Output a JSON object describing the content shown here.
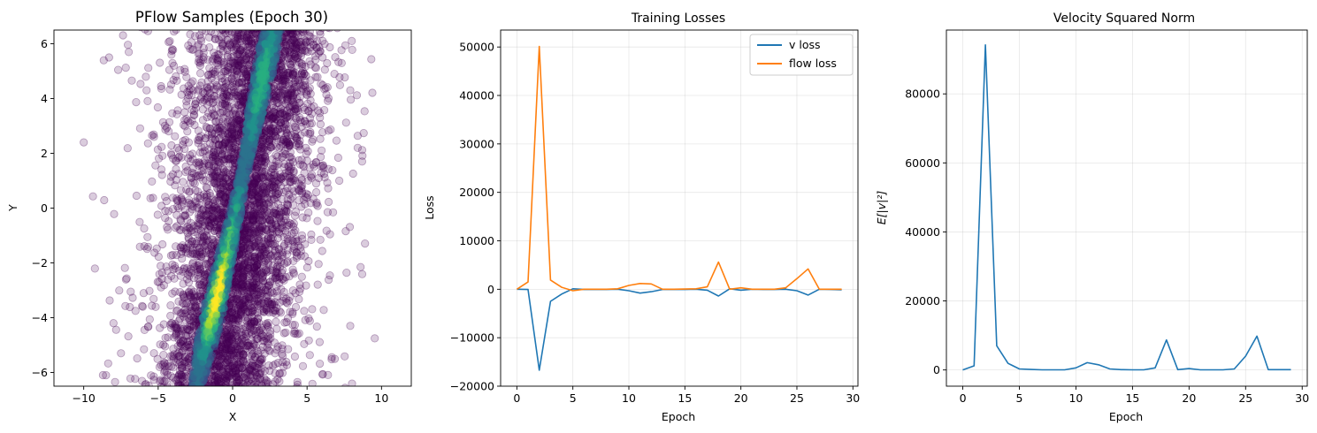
{
  "chart_data": [
    {
      "type": "scatter",
      "title": "PFlow Samples (Epoch 30)",
      "xlabel": "X",
      "ylabel": "Y",
      "xlim": [
        -12,
        12
      ],
      "ylim": [
        -6.5,
        6.5
      ],
      "xticks": [
        -10,
        -5,
        0,
        5,
        10
      ],
      "yticks": [
        -6,
        -4,
        -2,
        0,
        2,
        4,
        6
      ],
      "grid": false,
      "colormap": "viridis",
      "marker_alpha": 0.2,
      "point_color": "#440154",
      "distribution": {
        "main_band": {
          "points": 4200,
          "x_center_at_y0": 1.5,
          "x_slope_per_y": 0.29,
          "x_spread": 2.0
        },
        "outer_cloud": {
          "points": 900,
          "x_center": 0.0,
          "x_spread": 3.4
        },
        "dense_core": {
          "y_range": [
            -6.5,
            6.5
          ],
          "x_offset": 0.0
        },
        "sparse_far_points": [
          [
            -10.0,
            2.4
          ],
          [
            -8.3,
            5.5
          ],
          [
            -8.0,
            -4.2
          ],
          [
            -8.5,
            -6.1
          ],
          [
            8.0,
            6.1
          ],
          [
            7.9,
            4.3
          ],
          [
            8.4,
            2.2
          ],
          [
            8.7,
            1.7
          ],
          [
            7.9,
            -4.3
          ],
          [
            -7.5,
            -5.3
          ]
        ]
      }
    },
    {
      "type": "line",
      "title": "Training Losses",
      "xlabel": "Epoch",
      "ylabel": "Loss",
      "xlim": [
        -1.45,
        30.45
      ],
      "ylim": [
        -20000,
        53500
      ],
      "xticks": [
        0,
        5,
        10,
        15,
        20,
        25,
        30
      ],
      "yticks": [
        -20000,
        -10000,
        0,
        10000,
        20000,
        30000,
        40000,
        50000
      ],
      "grid": true,
      "legend": "top-right",
      "x": [
        0,
        1,
        2,
        3,
        4,
        5,
        6,
        7,
        8,
        9,
        10,
        11,
        12,
        13,
        14,
        15,
        16,
        17,
        18,
        19,
        20,
        21,
        22,
        23,
        24,
        25,
        26,
        27,
        28,
        29
      ],
      "series": [
        {
          "name": "v loss",
          "color": "#1f77b4",
          "values": [
            0,
            -50,
            -16700,
            -2500,
            -1000,
            100,
            -50,
            -50,
            -50,
            0,
            -300,
            -800,
            -500,
            -50,
            -50,
            -50,
            0,
            -200,
            -1400,
            100,
            -200,
            0,
            -50,
            -50,
            0,
            -300,
            -1200,
            0,
            -50,
            -100
          ]
        },
        {
          "name": "flow loss",
          "color": "#ff7f0e",
          "values": [
            0,
            1500,
            50100,
            1900,
            400,
            -300,
            0,
            0,
            0,
            100,
            800,
            1200,
            1100,
            0,
            0,
            50,
            100,
            500,
            5600,
            0,
            300,
            0,
            0,
            0,
            300,
            2200,
            4200,
            0,
            0,
            0
          ]
        }
      ]
    },
    {
      "type": "line",
      "title": "Velocity Squared Norm",
      "xlabel": "Epoch",
      "ylabel": "E[|v|²]",
      "xlim": [
        -1.45,
        30.45
      ],
      "ylim": [
        -4700,
        98500
      ],
      "xticks": [
        0,
        5,
        10,
        15,
        20,
        25,
        30
      ],
      "yticks": [
        0,
        20000,
        40000,
        60000,
        80000
      ],
      "grid": true,
      "x": [
        0,
        1,
        2,
        3,
        4,
        5,
        6,
        7,
        8,
        9,
        10,
        11,
        12,
        13,
        14,
        15,
        16,
        17,
        18,
        19,
        20,
        21,
        22,
        23,
        24,
        25,
        26,
        27,
        28,
        29
      ],
      "series": [
        {
          "color": "#1f77b4",
          "values": [
            0,
            1200,
            94200,
            7000,
            1900,
            300,
            150,
            50,
            50,
            50,
            600,
            2100,
            1500,
            300,
            100,
            50,
            50,
            600,
            8700,
            100,
            400,
            50,
            50,
            50,
            300,
            4000,
            9800,
            100,
            100,
            100
          ]
        }
      ]
    }
  ]
}
